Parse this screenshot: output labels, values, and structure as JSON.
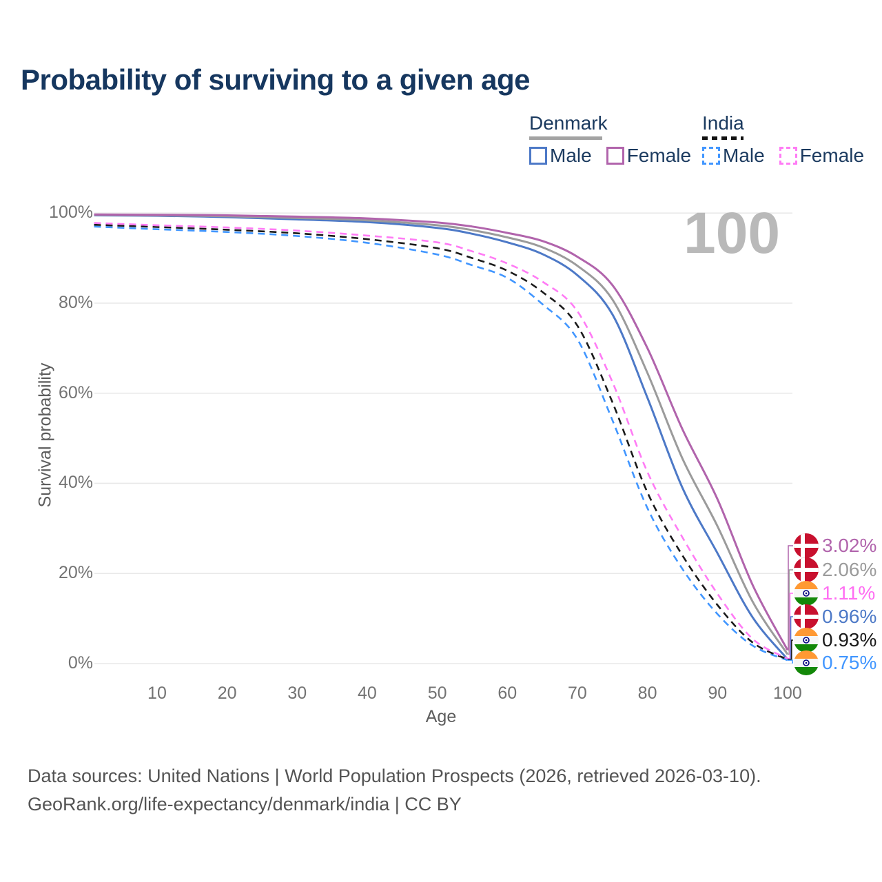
{
  "title": "Probability of surviving to a given age",
  "watermark": "100",
  "legend": {
    "groups": [
      {
        "country": "Denmark",
        "line_style": "solid",
        "underline_color": "#a3a3a3",
        "items": [
          {
            "label": "Male",
            "color": "#4d79c7"
          },
          {
            "label": "Female",
            "color": "#b164ac"
          }
        ]
      },
      {
        "country": "India",
        "line_style": "dashed",
        "underline_color": "#111111",
        "items": [
          {
            "label": "Male",
            "color": "#4196ff"
          },
          {
            "label": "Female",
            "color": "#ff7bf5"
          }
        ]
      }
    ]
  },
  "chart_data": {
    "type": "line",
    "title": "Probability of surviving to a given age",
    "xlabel": "Age",
    "ylabel": "Survival probability",
    "xlim": [
      0,
      100
    ],
    "ylim": [
      0,
      100
    ],
    "grid": "horizontal-only",
    "legend_position": "top-right",
    "x_ticks": [
      10,
      20,
      30,
      40,
      50,
      60,
      70,
      80,
      90,
      100
    ],
    "y_ticks": [
      0,
      20,
      40,
      60,
      80,
      100
    ],
    "y_tick_labels": [
      "0%",
      "20%",
      "40%",
      "60%",
      "80%",
      "100%"
    ],
    "x": [
      1,
      10,
      20,
      30,
      40,
      50,
      55,
      60,
      65,
      70,
      75,
      80,
      85,
      90,
      95,
      100
    ],
    "series": [
      {
        "name": "Denmark Male",
        "country": "Denmark",
        "sex": "Male",
        "dash": false,
        "color": "#4d79c7",
        "values": [
          99.5,
          99.4,
          99.1,
          98.6,
          98.0,
          96.7,
          95.4,
          93.5,
          90.9,
          86.2,
          77.5,
          59.0,
          39.0,
          24.5,
          10.3,
          0.96
        ],
        "end_label": "0.96%"
      },
      {
        "name": "Denmark Both sexes",
        "country": "Denmark",
        "sex": "Both",
        "dash": false,
        "color": "#9b9b9b",
        "values": [
          99.6,
          99.5,
          99.3,
          98.9,
          98.4,
          97.3,
          96.2,
          94.6,
          92.4,
          88.3,
          80.8,
          64.5,
          45.5,
          30.5,
          13.8,
          2.06
        ],
        "end_label": "2.06%"
      },
      {
        "name": "Denmark Female",
        "country": "Denmark",
        "sex": "Female",
        "dash": false,
        "color": "#b164ac",
        "values": [
          99.7,
          99.6,
          99.5,
          99.2,
          98.8,
          97.9,
          97.0,
          95.6,
          93.8,
          90.3,
          84.0,
          70.0,
          52.0,
          36.5,
          17.5,
          3.02
        ],
        "end_label": "3.02%"
      },
      {
        "name": "India Male",
        "country": "India",
        "sex": "Male",
        "dash": true,
        "color": "#4196ff",
        "values": [
          97.0,
          96.4,
          95.8,
          94.9,
          93.4,
          90.8,
          88.4,
          85.6,
          79.8,
          72.0,
          54.0,
          34.5,
          21.0,
          11.0,
          4.0,
          0.75
        ],
        "end_label": "0.75%"
      },
      {
        "name": "India Both sexes",
        "country": "India",
        "sex": "Both",
        "dash": true,
        "color": "#1a1a1a",
        "values": [
          97.4,
          96.9,
          96.3,
          95.5,
          94.2,
          92.2,
          90.0,
          87.2,
          82.5,
          75.0,
          58.0,
          38.0,
          24.0,
          13.0,
          4.7,
          0.93
        ],
        "end_label": "0.93%"
      },
      {
        "name": "India Female",
        "country": "India",
        "sex": "Female",
        "dash": true,
        "color": "#ff7bf5",
        "values": [
          97.8,
          97.3,
          96.8,
          96.1,
          95.0,
          93.5,
          91.5,
          88.8,
          84.8,
          78.2,
          62.5,
          42.5,
          28.0,
          15.5,
          5.5,
          1.11
        ],
        "end_label": "1.11%"
      }
    ]
  },
  "end_labels": [
    {
      "value": "3.02%",
      "country": "Denmark",
      "flag": "dk",
      "color": "#b164ac"
    },
    {
      "value": "2.06%",
      "country": "Denmark",
      "flag": "dk",
      "color": "#9b9b9b"
    },
    {
      "value": "1.11%",
      "country": "India",
      "flag": "in",
      "color": "#ff6df2"
    },
    {
      "value": "0.96%",
      "country": "Denmark",
      "flag": "dk",
      "color": "#4d79c7"
    },
    {
      "value": "0.93%",
      "country": "India",
      "flag": "in",
      "color": "#1a1a1a"
    },
    {
      "value": "0.75%",
      "country": "India",
      "flag": "in",
      "color": "#4196ff"
    }
  ],
  "flag_colors": {
    "denmark_red": "#c8102e",
    "india_saffron": "#ff9933",
    "india_green": "#138808",
    "india_navy": "#000080"
  },
  "footer": {
    "line1": "Data sources: United Nations | World Population Prospects (2026, retrieved 2026-03-10).",
    "line2": "GeoRank.org/life-expectancy/denmark/india | CC BY"
  }
}
